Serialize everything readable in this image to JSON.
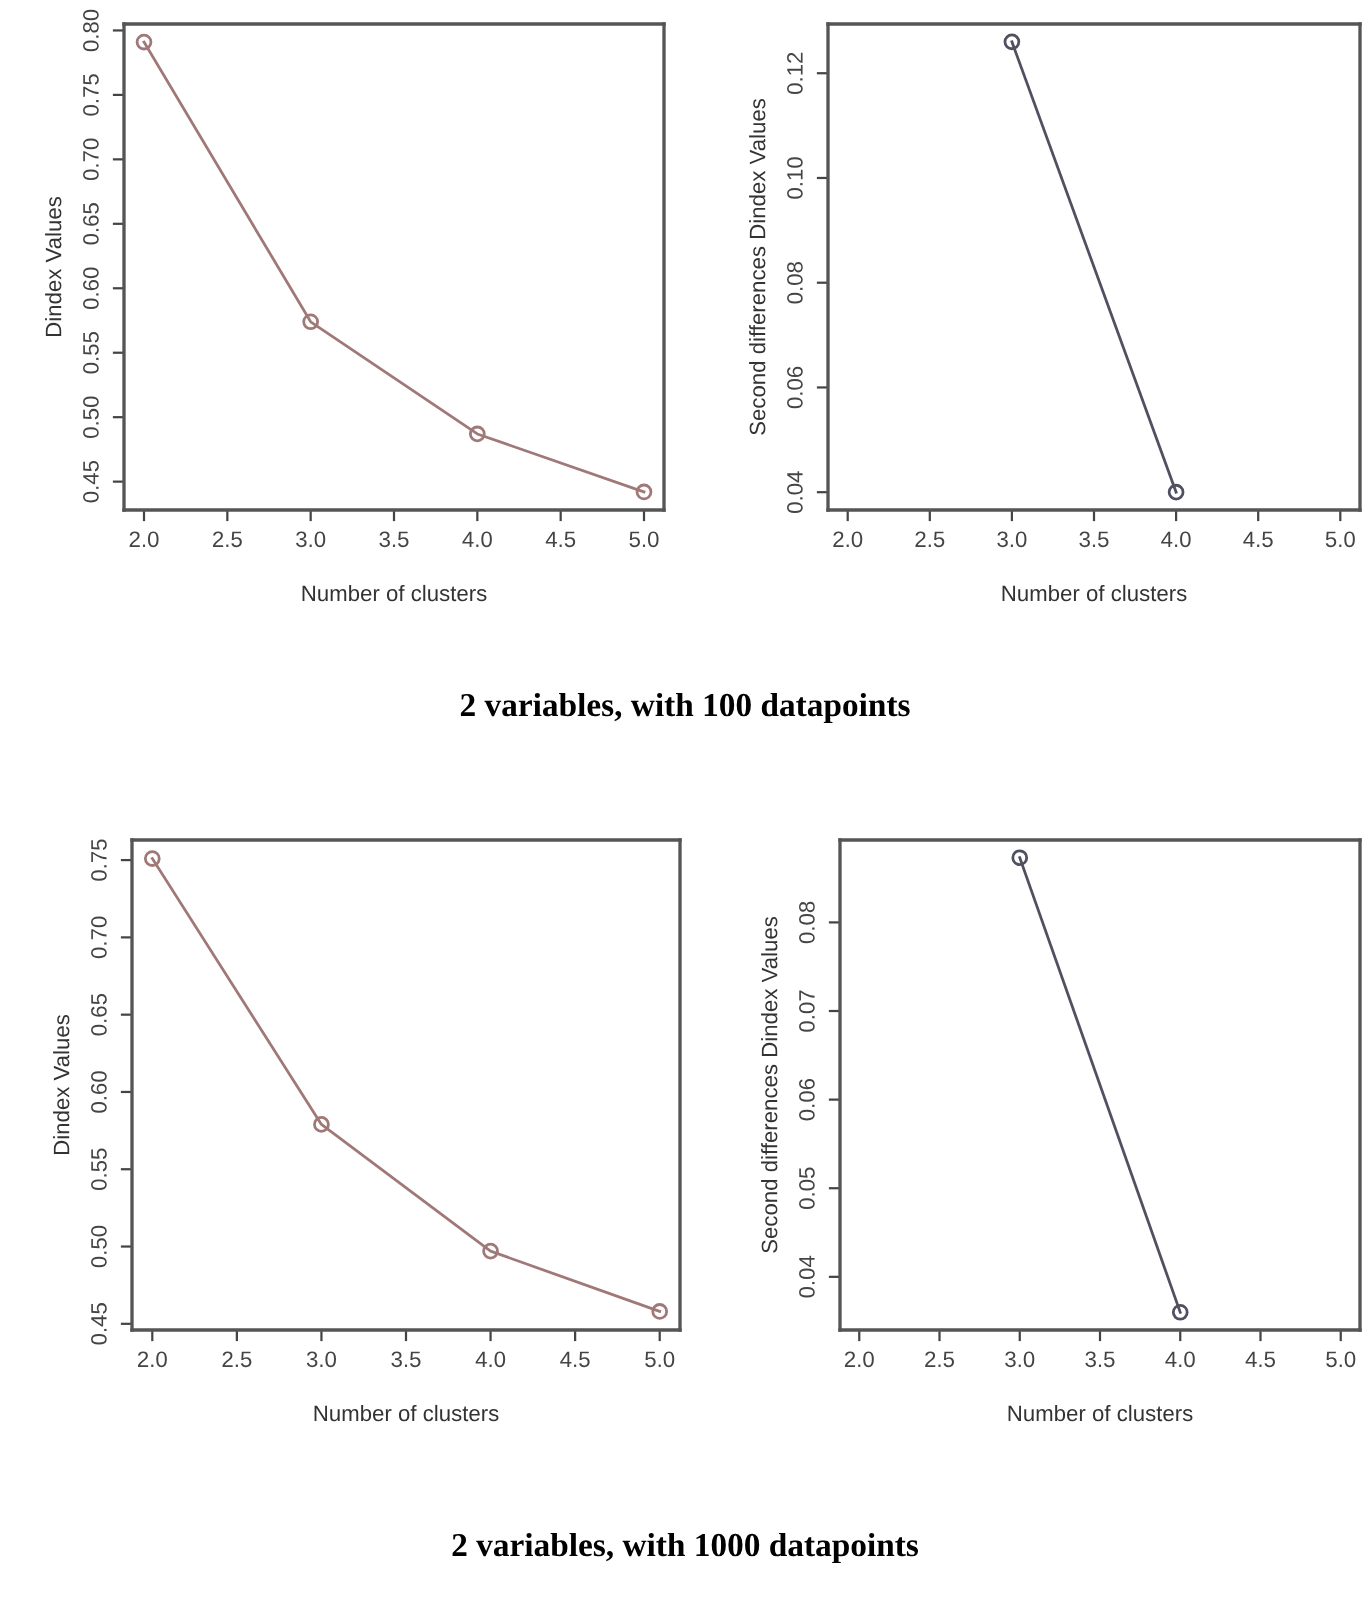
{
  "chart_data": [
    {
      "type": "line",
      "xlabel": "Number of clusters",
      "ylabel": "Dindex Values",
      "x": [
        2,
        3,
        4,
        5
      ],
      "values": [
        0.791,
        0.574,
        0.487,
        0.442
      ],
      "color": "#a07878",
      "marker": "circle",
      "xlim": [
        1.88,
        5.12
      ],
      "xticks": [
        {
          "value": 2,
          "label": "2.0"
        },
        {
          "value": 2.5,
          "label": "2.5"
        },
        {
          "value": 3,
          "label": "3.0"
        },
        {
          "value": 3.5,
          "label": "3.5"
        },
        {
          "value": 4,
          "label": "4.0"
        },
        {
          "value": 4.5,
          "label": "4.5"
        },
        {
          "value": 5,
          "label": "5.0"
        }
      ],
      "ylim": [
        0.428,
        0.805
      ],
      "yticks": [
        {
          "value": 0.45,
          "label": "0.45"
        },
        {
          "value": 0.5,
          "label": "0.50"
        },
        {
          "value": 0.55,
          "label": "0.55"
        },
        {
          "value": 0.6,
          "label": "0.60"
        },
        {
          "value": 0.65,
          "label": "0.65"
        },
        {
          "value": 0.7,
          "label": "0.70"
        },
        {
          "value": 0.75,
          "label": "0.75"
        },
        {
          "value": 0.8,
          "label": "0.80"
        }
      ],
      "annotations": [
        "2 variables, with 100 datapoints"
      ]
    },
    {
      "type": "line",
      "xlabel": "Number of clusters",
      "ylabel": "Second differences Dindex Values",
      "x": [
        3,
        4
      ],
      "values": [
        0.126,
        0.04
      ],
      "color": "#505060",
      "marker": "circle",
      "xlim": [
        1.88,
        5.12
      ],
      "xticks": [
        {
          "value": 2,
          "label": "2.0"
        },
        {
          "value": 2.5,
          "label": "2.5"
        },
        {
          "value": 3,
          "label": "3.0"
        },
        {
          "value": 3.5,
          "label": "3.5"
        },
        {
          "value": 4,
          "label": "4.0"
        },
        {
          "value": 4.5,
          "label": "4.5"
        },
        {
          "value": 5,
          "label": "5.0"
        }
      ],
      "ylim": [
        0.0366,
        0.1294
      ],
      "yticks": [
        {
          "value": 0.04,
          "label": "0.04"
        },
        {
          "value": 0.06,
          "label": "0.06"
        },
        {
          "value": 0.08,
          "label": "0.08"
        },
        {
          "value": 0.1,
          "label": "0.10"
        },
        {
          "value": 0.12,
          "label": "0.12"
        }
      ]
    },
    {
      "type": "line",
      "xlabel": "Number of clusters",
      "ylabel": "Dindex Values",
      "x": [
        2,
        3,
        4,
        5
      ],
      "values": [
        0.751,
        0.579,
        0.497,
        0.458
      ],
      "color": "#a07878",
      "marker": "circle",
      "xlim": [
        1.88,
        5.12
      ],
      "xticks": [
        {
          "value": 2,
          "label": "2.0"
        },
        {
          "value": 2.5,
          "label": "2.5"
        },
        {
          "value": 3,
          "label": "3.0"
        },
        {
          "value": 3.5,
          "label": "3.5"
        },
        {
          "value": 4,
          "label": "4.0"
        },
        {
          "value": 4.5,
          "label": "4.5"
        },
        {
          "value": 5,
          "label": "5.0"
        }
      ],
      "ylim": [
        0.446,
        0.763
      ],
      "yticks": [
        {
          "value": 0.45,
          "label": "0.45"
        },
        {
          "value": 0.5,
          "label": "0.50"
        },
        {
          "value": 0.55,
          "label": "0.55"
        },
        {
          "value": 0.6,
          "label": "0.60"
        },
        {
          "value": 0.65,
          "label": "0.65"
        },
        {
          "value": 0.7,
          "label": "0.70"
        },
        {
          "value": 0.75,
          "label": "0.75"
        }
      ],
      "annotations": [
        "2 variables, with 1000 datapoints"
      ]
    },
    {
      "type": "line",
      "xlabel": "Number of clusters",
      "ylabel": "Second differences Dindex Values",
      "x": [
        3,
        4
      ],
      "values": [
        0.0873,
        0.036
      ],
      "color": "#505060",
      "marker": "circle",
      "xlim": [
        1.88,
        5.12
      ],
      "xticks": [
        {
          "value": 2,
          "label": "2.0"
        },
        {
          "value": 2.5,
          "label": "2.5"
        },
        {
          "value": 3,
          "label": "3.0"
        },
        {
          "value": 3.5,
          "label": "3.5"
        },
        {
          "value": 4,
          "label": "4.0"
        },
        {
          "value": 4.5,
          "label": "4.5"
        },
        {
          "value": 5,
          "label": "5.0"
        }
      ],
      "ylim": [
        0.034,
        0.0893
      ],
      "yticks": [
        {
          "value": 0.04,
          "label": "0.04"
        },
        {
          "value": 0.05,
          "label": "0.05"
        },
        {
          "value": 0.06,
          "label": "0.06"
        },
        {
          "value": 0.07,
          "label": "0.07"
        },
        {
          "value": 0.08,
          "label": "0.08"
        }
      ]
    }
  ]
}
